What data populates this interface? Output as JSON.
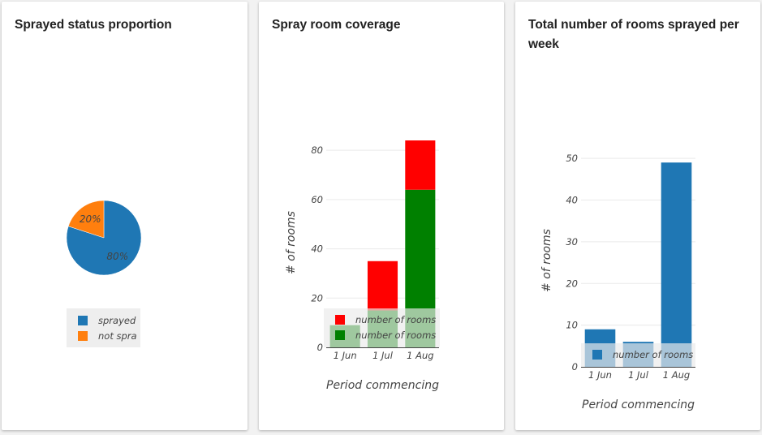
{
  "cards": [
    {
      "title": "Sprayed status proportion"
    },
    {
      "title": "Spray room coverage"
    },
    {
      "title": "Total number of rooms sprayed per week"
    }
  ],
  "chart_data": [
    {
      "type": "pie",
      "title": "Sprayed status proportion",
      "labels": [
        "sprayed",
        "not sprayed"
      ],
      "legend_display": [
        "sprayed",
        "not spra"
      ],
      "values": [
        80,
        20
      ],
      "slice_labels": [
        "80%",
        "20%"
      ],
      "colors": [
        "#1f77b4",
        "#ff7f0e"
      ],
      "legend": "bottom"
    },
    {
      "type": "bar",
      "stacked": true,
      "title": "Spray room coverage",
      "categories": [
        "1 Jun",
        "1 Jul",
        "1 Aug"
      ],
      "series": [
        {
          "name": "number of rooms",
          "color": "#008000",
          "values": [
            9,
            15,
            64
          ]
        },
        {
          "name": "number of rooms",
          "color": "#ff0000",
          "values": [
            0,
            20,
            20
          ]
        }
      ],
      "legend_order": [
        1,
        0
      ],
      "xlabel": "Period commencing",
      "ylabel": "# of rooms",
      "ylim": [
        0,
        85
      ],
      "yticks": [
        0,
        20,
        40,
        60,
        80
      ],
      "grid": true,
      "legend": "bottom"
    },
    {
      "type": "bar",
      "title": "Total number of rooms sprayed per week",
      "categories": [
        "1 Jun",
        "1 Jul",
        "1 Aug"
      ],
      "series": [
        {
          "name": "number of rooms",
          "color": "#1f77b4",
          "values": [
            9,
            6,
            49
          ]
        }
      ],
      "xlabel": "Period commencing",
      "ylabel": "# of rooms",
      "ylim": [
        0,
        51
      ],
      "yticks": [
        0,
        10,
        20,
        30,
        40,
        50
      ],
      "grid": true,
      "legend": "bottom"
    }
  ]
}
